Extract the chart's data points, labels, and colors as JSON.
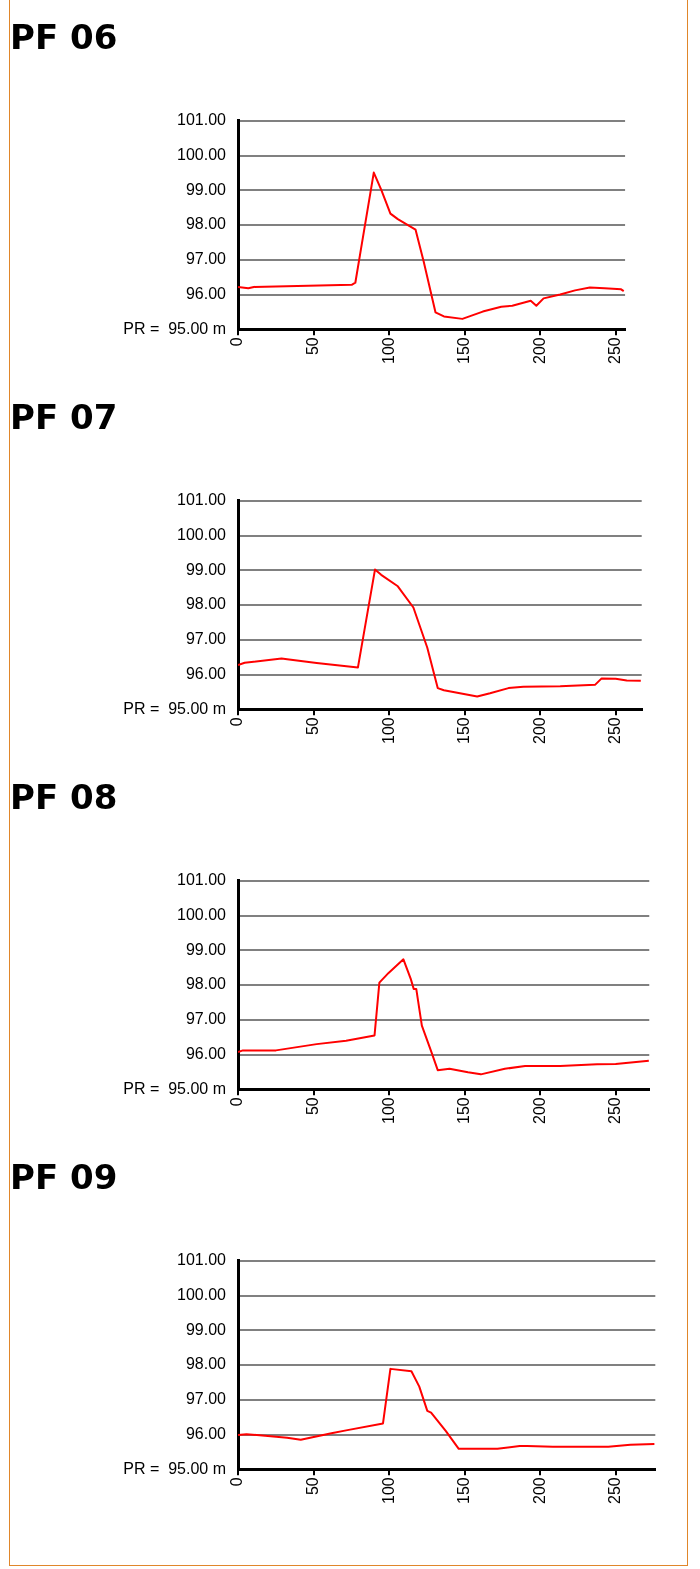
{
  "chart_data": [
    {
      "type": "line",
      "title": "PF 06",
      "color": "#ff0000",
      "marker": "none",
      "grid": "y",
      "x": [
        0,
        6.8,
        10.5,
        75.2,
        77.6,
        89.8,
        94.7,
        100.8,
        105.7,
        117.4,
        122.8,
        130.6,
        136.2,
        148.4,
        161.9,
        174.1,
        181.4,
        193.6,
        197.3,
        202.1,
        213.1,
        222.9,
        232.7,
        242.4,
        253.4,
        255.1
      ],
      "values": [
        96.22,
        96.18,
        96.22,
        96.28,
        96.34,
        99.51,
        99.02,
        98.33,
        98.17,
        97.87,
        96.95,
        95.49,
        95.37,
        95.3,
        95.51,
        95.65,
        95.68,
        95.82,
        95.68,
        95.89,
        96.0,
        96.12,
        96.2,
        96.18,
        96.15,
        96.1
      ],
      "xlim": [
        0,
        256
      ],
      "xticks": [
        0,
        50,
        100,
        150,
        200,
        250
      ],
      "ylim": [
        95,
        101
      ],
      "yticks": [
        {
          "value": 95,
          "label": "PR =  95.00 m"
        },
        {
          "value": 96,
          "label": "96.00"
        },
        {
          "value": 97,
          "label": "97.00"
        },
        {
          "value": 98,
          "label": "98.00"
        },
        {
          "value": 99,
          "label": "99.00"
        },
        {
          "value": 100,
          "label": "100.00"
        },
        {
          "value": 101,
          "label": "101.00"
        }
      ]
    },
    {
      "type": "line",
      "title": "PF 07",
      "color": "#ff0000",
      "marker": "none",
      "grid": "y",
      "x": [
        0,
        4.4,
        28.8,
        32.5,
        52,
        79.3,
        90.6,
        94.7,
        105.7,
        116,
        125.2,
        132.1,
        136.2,
        158.2,
        166.7,
        178.9,
        188.7,
        213.1,
        236.3,
        240.5,
        249.8,
        257.1,
        266.4
      ],
      "values": [
        96.27,
        96.34,
        96.46,
        96.44,
        96.33,
        96.2,
        99.02,
        98.87,
        98.54,
        97.93,
        96.77,
        95.61,
        95.55,
        95.37,
        95.46,
        95.61,
        95.65,
        95.66,
        95.71,
        95.89,
        95.88,
        95.83,
        95.82
      ],
      "xlim": [
        0,
        267
      ],
      "xticks": [
        0,
        50,
        100,
        150,
        200,
        250
      ],
      "ylim": [
        95,
        101
      ],
      "yticks": [
        {
          "value": 95,
          "label": "PR =  95.00 m"
        },
        {
          "value": 96,
          "label": "96.00"
        },
        {
          "value": 97,
          "label": "97.00"
        },
        {
          "value": 98,
          "label": "98.00"
        },
        {
          "value": 99,
          "label": "99.00"
        },
        {
          "value": 100,
          "label": "100.00"
        },
        {
          "value": 101,
          "label": "101.00"
        }
      ]
    },
    {
      "type": "line",
      "title": "PF 08",
      "color": "#ff0000",
      "marker": "none",
      "grid": "y",
      "x": [
        0,
        3.2,
        25.1,
        52,
        71.5,
        90.3,
        93.5,
        99.6,
        109.4,
        114.3,
        116.2,
        117.9,
        121.6,
        127.7,
        132.1,
        139.9,
        152.1,
        160.6,
        176.5,
        189.9,
        213.1,
        237.5,
        249.8,
        271.7
      ],
      "values": [
        96.07,
        96.12,
        96.12,
        96.3,
        96.4,
        96.55,
        98.07,
        98.35,
        98.74,
        98.17,
        97.89,
        97.89,
        96.83,
        96.1,
        95.55,
        95.59,
        95.49,
        95.43,
        95.59,
        95.67,
        95.67,
        95.72,
        95.73,
        95.82
      ],
      "xlim": [
        0,
        272
      ],
      "xticks": [
        0,
        50,
        100,
        150,
        200,
        250
      ],
      "ylim": [
        95,
        101
      ],
      "yticks": [
        {
          "value": 95,
          "label": "PR =  95.00 m"
        },
        {
          "value": 96,
          "label": "96.00"
        },
        {
          "value": 97,
          "label": "97.00"
        },
        {
          "value": 98,
          "label": "98.00"
        },
        {
          "value": 99,
          "label": "99.00"
        },
        {
          "value": 100,
          "label": "100.00"
        },
        {
          "value": 101,
          "label": "101.00"
        }
      ]
    },
    {
      "type": "line",
      "title": "PF 09",
      "color": "#ff0000",
      "marker": "none",
      "grid": "y",
      "x": [
        0,
        5.6,
        32.5,
        41.5,
        61.8,
        71.5,
        95.9,
        100.8,
        114.7,
        119.9,
        125.2,
        127.7,
        137.5,
        146,
        171.6,
        186.3,
        191.2,
        208.3,
        244.9,
        259.5,
        275.4
      ],
      "values": [
        95.99,
        96.01,
        95.91,
        95.85,
        96.04,
        96.12,
        96.32,
        97.89,
        97.82,
        97.38,
        96.68,
        96.63,
        96.1,
        95.59,
        95.59,
        95.67,
        95.67,
        95.65,
        95.65,
        95.71,
        95.73
      ],
      "xlim": [
        0,
        276
      ],
      "xticks": [
        0,
        50,
        100,
        150,
        200,
        250
      ],
      "ylim": [
        95,
        101
      ],
      "yticks": [
        {
          "value": 95,
          "label": "PR =  95.00 m"
        },
        {
          "value": 96,
          "label": "96.00"
        },
        {
          "value": 97,
          "label": "97.00"
        },
        {
          "value": 98,
          "label": "98.00"
        },
        {
          "value": 99,
          "label": "99.00"
        },
        {
          "value": 100,
          "label": "100.00"
        },
        {
          "value": 101,
          "label": "101.00"
        }
      ]
    }
  ]
}
